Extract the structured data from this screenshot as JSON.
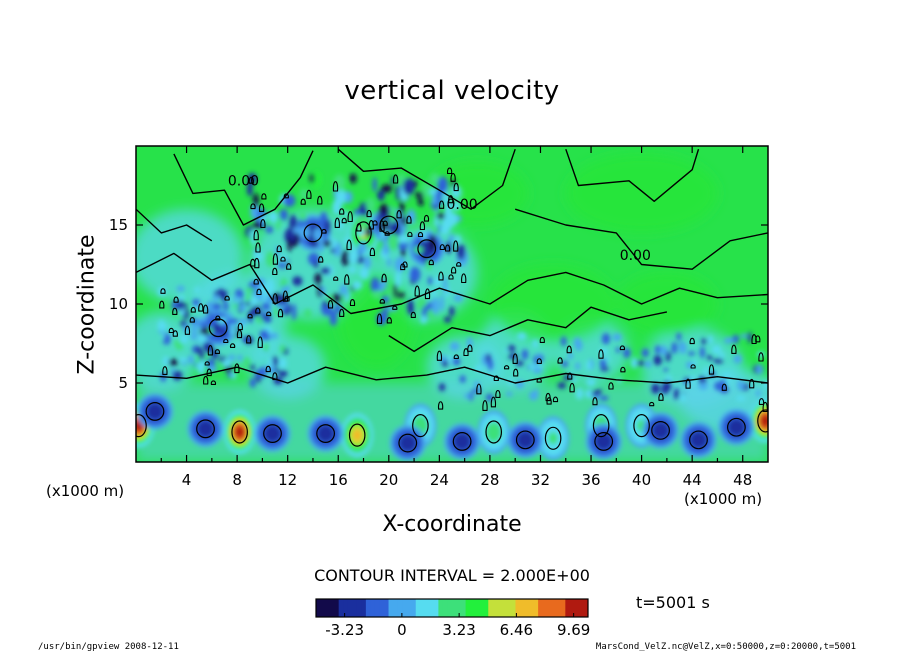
{
  "chart_data": {
    "type": "heatmap",
    "title": "vertical velocity",
    "xlabel": "X-coordinate",
    "ylabel": "Z-coordinate",
    "x_unit_label": "(x1000 m)",
    "xlim": [
      0,
      50
    ],
    "ylim": [
      0,
      20
    ],
    "x_ticks": [
      4,
      8,
      12,
      16,
      20,
      24,
      28,
      32,
      36,
      40,
      44,
      48
    ],
    "y_ticks": [
      5,
      10,
      15
    ],
    "contour_interval_text": "CONTOUR INTERVAL = 2.000E+00",
    "contour_labels": [
      {
        "text": "0.00",
        "x": 8.5,
        "y": 17.5
      },
      {
        "text": "0.00",
        "x": 25.8,
        "y": 16.0
      },
      {
        "text": "0.00",
        "x": 39.5,
        "y": 12.8
      }
    ],
    "colorbar": {
      "min": -4.845,
      "max": 10.5,
      "tick_labels": [
        "-3.23",
        "0",
        "3.23",
        "6.46",
        "9.69"
      ],
      "tick_values": [
        -3.23,
        0,
        3.23,
        6.46,
        9.69
      ],
      "colors": [
        "#120a4a",
        "#1a2f9e",
        "#2f62d8",
        "#46a9ee",
        "#56dcf0",
        "#3de07a",
        "#22f03c",
        "#c4e03a",
        "#f0bc2a",
        "#e86a1e",
        "#b01a10"
      ]
    },
    "features": [
      {
        "kind": "updraft",
        "x": 0.2,
        "z": 2.3,
        "w": 9.69
      },
      {
        "kind": "updraft",
        "x": 8.2,
        "z": 1.9,
        "w": 9.69
      },
      {
        "kind": "updraft",
        "x": 17.5,
        "z": 1.7,
        "w": 7.0
      },
      {
        "kind": "updraft",
        "x": 49.8,
        "z": 2.6,
        "w": 9.69
      },
      {
        "kind": "updraft",
        "x": 36.8,
        "z": 2.3,
        "w": 3.5
      },
      {
        "kind": "updraft",
        "x": 22.5,
        "z": 2.3,
        "w": 3.0
      },
      {
        "kind": "updraft",
        "x": 28.3,
        "z": 1.9,
        "w": 3.0
      },
      {
        "kind": "updraft",
        "x": 33.0,
        "z": 1.5,
        "w": 2.5
      },
      {
        "kind": "updraft",
        "x": 40.0,
        "z": 2.3,
        "w": 2.5
      },
      {
        "kind": "updraft",
        "x": 18.0,
        "z": 14.5,
        "w": 6.0
      },
      {
        "kind": "downdraft",
        "x": 1.5,
        "z": 3.2,
        "w": -3.23
      },
      {
        "kind": "downdraft",
        "x": 5.5,
        "z": 2.1,
        "w": -3.23
      },
      {
        "kind": "downdraft",
        "x": 10.8,
        "z": 1.8,
        "w": -3.23
      },
      {
        "kind": "downdraft",
        "x": 15.0,
        "z": 1.8,
        "w": -3.23
      },
      {
        "kind": "downdraft",
        "x": 21.5,
        "z": 1.2,
        "w": -3.23
      },
      {
        "kind": "downdraft",
        "x": 25.8,
        "z": 1.3,
        "w": -3.23
      },
      {
        "kind": "downdraft",
        "x": 30.8,
        "z": 1.4,
        "w": -3.23
      },
      {
        "kind": "downdraft",
        "x": 37.0,
        "z": 1.3,
        "w": -3.23
      },
      {
        "kind": "downdraft",
        "x": 41.5,
        "z": 2.0,
        "w": -3.23
      },
      {
        "kind": "downdraft",
        "x": 44.5,
        "z": 1.4,
        "w": -3.23
      },
      {
        "kind": "downdraft",
        "x": 47.5,
        "z": 2.2,
        "w": -3.23
      },
      {
        "kind": "downdraft",
        "x": 14.0,
        "z": 14.5,
        "w": -3.23
      },
      {
        "kind": "downdraft",
        "x": 20.0,
        "z": 15.0,
        "w": -3.23
      },
      {
        "kind": "downdraft",
        "x": 23.0,
        "z": 13.5,
        "w": -3.23
      },
      {
        "kind": "downdraft",
        "x": 6.5,
        "z": 8.5,
        "w": -2.5
      }
    ]
  },
  "time_label": "t=5001 s",
  "footer": {
    "left": "/usr/bin/gpview   2008-12-11",
    "right": "MarsCond_VelZ.nc@VelZ,x=0:50000,z=0:20000,t=5001"
  }
}
